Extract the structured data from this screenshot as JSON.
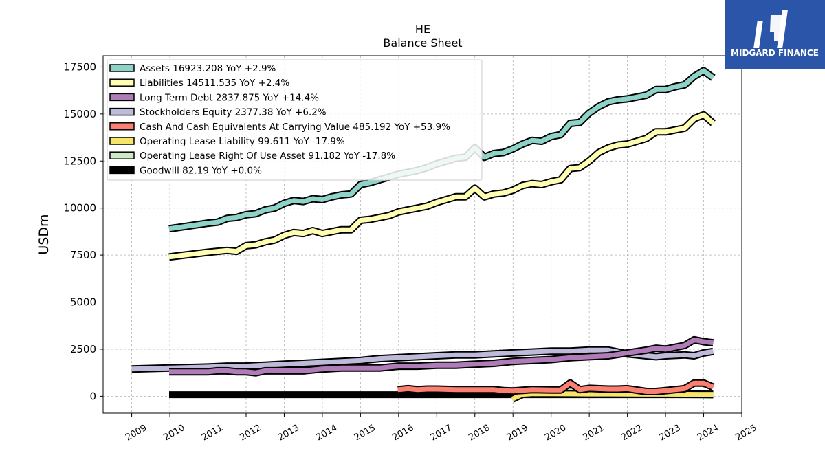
{
  "logo": {
    "text": "MIDGARD FINANCE",
    "bg_color": "#2a55a8"
  },
  "chart_data": {
    "type": "area",
    "title": "HE",
    "subtitle": "Balance  Sheet",
    "ylabel": "USDm",
    "xlabel": "",
    "ylim": [
      -900,
      18100
    ],
    "xlim": [
      2008.25,
      2025.0
    ],
    "yticks": [
      0,
      2500,
      5000,
      7500,
      10000,
      12500,
      15000,
      17500
    ],
    "xticks": [
      "2009",
      "2010",
      "2011",
      "2012",
      "2013",
      "2014",
      "2015",
      "2016",
      "2017",
      "2018",
      "2019",
      "2020",
      "2021",
      "2022",
      "2023",
      "2024",
      "2025"
    ],
    "grid": true,
    "legend_position": "top-left",
    "series": [
      {
        "name": "Assets",
        "color": "#8dd3c7",
        "legend": "Assets  16923.208 YoY +2.9%",
        "x": [
          2009.98,
          2011.0,
          2011.25,
          2011.5,
          2011.75,
          2012.0,
          2012.25,
          2012.5,
          2012.75,
          2013.0,
          2013.25,
          2013.5,
          2013.75,
          2014.0,
          2014.25,
          2014.5,
          2014.75,
          2015.0,
          2015.25,
          2015.5,
          2015.75,
          2016.0,
          2016.25,
          2016.5,
          2016.75,
          2017.0,
          2017.25,
          2017.5,
          2017.75,
          2018.0,
          2018.25,
          2018.5,
          2018.75,
          2019.0,
          2019.25,
          2019.5,
          2019.75,
          2020.0,
          2020.25,
          2020.5,
          2020.75,
          2021.0,
          2021.25,
          2021.5,
          2021.75,
          2022.0,
          2022.25,
          2022.5,
          2022.75,
          2023.0,
          2023.25,
          2023.5,
          2023.75,
          2024.0,
          2024.25
        ],
        "values": [
          8900,
          9200,
          9250,
          9450,
          9500,
          9650,
          9700,
          9900,
          10000,
          10250,
          10400,
          10350,
          10500,
          10450,
          10600,
          10700,
          10750,
          11250,
          11350,
          11500,
          11650,
          11800,
          11900,
          12000,
          12150,
          12350,
          12500,
          12650,
          12700,
          13200,
          12700,
          12900,
          12950,
          13150,
          13400,
          13600,
          13550,
          13800,
          13900,
          14500,
          14550,
          15050,
          15400,
          15650,
          15750,
          15800,
          15900,
          16000,
          16300,
          16300,
          16450,
          16550,
          17000,
          17300,
          16923
        ]
      },
      {
        "name": "Liabilities",
        "color": "#ffffb3",
        "legend": "Liabilities  14511.535 YoY +2.4%",
        "x": [
          2009.98,
          2011.0,
          2011.25,
          2011.5,
          2011.75,
          2012.0,
          2012.25,
          2012.5,
          2012.75,
          2013.0,
          2013.25,
          2013.5,
          2013.75,
          2014.0,
          2014.25,
          2014.5,
          2014.75,
          2015.0,
          2015.25,
          2015.5,
          2015.75,
          2016.0,
          2016.25,
          2016.5,
          2016.75,
          2017.0,
          2017.25,
          2017.5,
          2017.75,
          2018.0,
          2018.25,
          2018.5,
          2018.75,
          2019.0,
          2019.25,
          2019.5,
          2019.75,
          2020.0,
          2020.25,
          2020.5,
          2020.75,
          2021.0,
          2021.25,
          2021.5,
          2021.75,
          2022.0,
          2022.25,
          2022.5,
          2022.75,
          2023.0,
          2023.25,
          2023.5,
          2023.75,
          2024.0,
          2024.25
        ],
        "values": [
          7400,
          7650,
          7700,
          7750,
          7700,
          8000,
          8050,
          8200,
          8300,
          8550,
          8700,
          8650,
          8800,
          8650,
          8750,
          8850,
          8850,
          9350,
          9400,
          9500,
          9600,
          9800,
          9900,
          10000,
          10100,
          10300,
          10450,
          10600,
          10600,
          11050,
          10600,
          10750,
          10800,
          10950,
          11200,
          11300,
          11250,
          11400,
          11500,
          12100,
          12150,
          12500,
          12950,
          13200,
          13350,
          13400,
          13550,
          13700,
          14050,
          14050,
          14150,
          14250,
          14750,
          14950,
          14511
        ]
      },
      {
        "name": "Long Term Debt",
        "color": "#b07cb8",
        "legend": "Long Term Debt  2837.875 YoY +14.4%",
        "x": [
          2009.98,
          2011.0,
          2011.25,
          2011.5,
          2011.75,
          2012.0,
          2012.25,
          2012.5,
          2012.75,
          2013.0,
          2013.5,
          2014.0,
          2014.5,
          2015.0,
          2015.5,
          2016.0,
          2016.5,
          2017.0,
          2017.5,
          2018.0,
          2018.5,
          2019.0,
          2019.5,
          2020.0,
          2020.5,
          2021.0,
          2021.5,
          2022.0,
          2022.5,
          2022.75,
          2023.0,
          2023.5,
          2023.75,
          2024.0,
          2024.25
        ],
        "values": [
          1300,
          1300,
          1350,
          1350,
          1300,
          1300,
          1250,
          1350,
          1350,
          1350,
          1350,
          1450,
          1500,
          1500,
          1500,
          1600,
          1600,
          1650,
          1650,
          1700,
          1750,
          1850,
          1900,
          1950,
          2050,
          2100,
          2150,
          2300,
          2450,
          2550,
          2500,
          2700,
          3000,
          2900,
          2838
        ]
      },
      {
        "name": "Stockholders Equity",
        "color": "#bebada",
        "legend": "Stockholders Equity  2377.38 YoY +6.2%",
        "x": [
          2009.0,
          2010.0,
          2011.0,
          2011.5,
          2012.0,
          2012.5,
          2013.0,
          2013.5,
          2014.0,
          2014.5,
          2015.0,
          2015.5,
          2016.0,
          2016.5,
          2017.0,
          2017.5,
          2018.0,
          2018.5,
          2019.0,
          2019.5,
          2020.0,
          2020.5,
          2021.0,
          2021.5,
          2022.0,
          2022.5,
          2022.75,
          2023.0,
          2023.5,
          2023.75,
          2024.0,
          2024.25
        ],
        "values": [
          1450,
          1500,
          1550,
          1600,
          1600,
          1650,
          1700,
          1750,
          1800,
          1850,
          1900,
          2000,
          2050,
          2100,
          2150,
          2200,
          2200,
          2250,
          2300,
          2350,
          2400,
          2400,
          2450,
          2450,
          2250,
          2150,
          2100,
          2150,
          2200,
          2150,
          2300,
          2377
        ]
      },
      {
        "name": "Cash And Cash Equivalents At Carrying Value",
        "color": "#fb8072",
        "legend": "Cash And Cash Equivalents At Carrying Value  485.192 YoY +53.9%",
        "x": [
          2015.98,
          2016.25,
          2016.5,
          2016.75,
          2017.0,
          2017.5,
          2018.0,
          2018.5,
          2018.75,
          2019.0,
          2019.5,
          2020.0,
          2020.25,
          2020.5,
          2020.75,
          2021.0,
          2021.5,
          2021.75,
          2022.0,
          2022.5,
          2022.75,
          2023.0,
          2023.5,
          2023.75,
          2024.0,
          2024.25
        ],
        "values": [
          350,
          400,
          350,
          380,
          380,
          350,
          350,
          350,
          300,
          280,
          350,
          330,
          330,
          700,
          350,
          420,
          380,
          380,
          400,
          250,
          250,
          300,
          400,
          700,
          700,
          485
        ]
      },
      {
        "name": "Operating Lease Liability",
        "color": "#f5e56b",
        "legend": "Operating Lease Liability  99.611 YoY -17.9%",
        "x": [
          2018.98,
          2019.25,
          2019.5,
          2020.0,
          2020.5,
          2021.0,
          2021.5,
          2022.0,
          2022.5,
          2023.0,
          2023.5,
          2024.0,
          2024.25
        ],
        "values": [
          -150,
          100,
          130,
          130,
          125,
          120,
          120,
          115,
          110,
          110,
          105,
          100,
          100
        ]
      },
      {
        "name": "Operating Lease Right Of Use Asset",
        "color": "#ccebc5",
        "legend": "Operating Lease Right Of Use Asset  91.182 YoY -17.8%",
        "x": [
          2018.98,
          2019.25,
          2019.5,
          2020.0,
          2020.5,
          2021.0,
          2021.5,
          2022.0,
          2022.5,
          2023.0,
          2023.5,
          2024.0,
          2024.25
        ],
        "values": [
          -50,
          300,
          310,
          300,
          280,
          250,
          220,
          200,
          180,
          150,
          120,
          100,
          91
        ]
      },
      {
        "name": "Goodwill",
        "color": "#000000",
        "legend": "Goodwill  82.19 YoY +0.0%",
        "x": [
          2009.98,
          2024.25
        ],
        "values": [
          82.19,
          82.19
        ]
      }
    ]
  }
}
